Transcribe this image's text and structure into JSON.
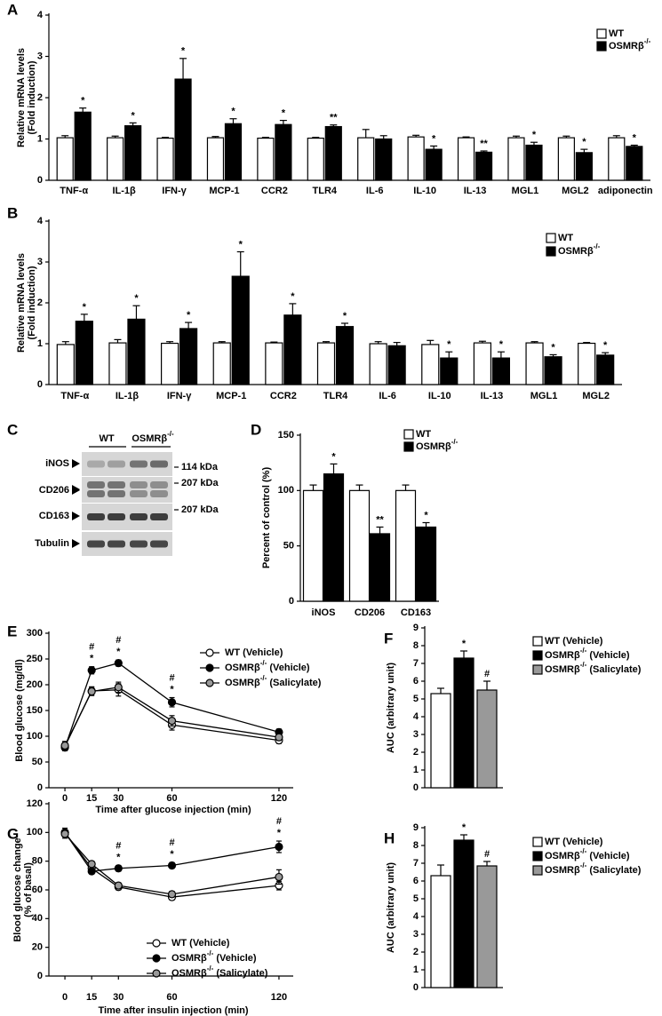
{
  "chart_data": [
    {
      "type": "bar",
      "panel": "A",
      "y_label": [
        "Relative mRNA levels",
        "(Fold induction)"
      ],
      "categories": [
        "TNF-α",
        "IL-1β",
        "IFN-γ",
        "MCP-1",
        "CCR2",
        "TLR4",
        "IL-6",
        "IL-10",
        "IL-13",
        "MGL1",
        "MGL2",
        "adiponectin"
      ],
      "ylim": [
        0,
        4
      ],
      "yticks": [
        0,
        1,
        2,
        3,
        4
      ],
      "series": [
        {
          "name": "WT",
          "color": "#ffffff",
          "values": [
            1.03,
            1.03,
            1.02,
            1.03,
            1.02,
            1.02,
            1.03,
            1.05,
            1.03,
            1.03,
            1.03,
            1.03
          ],
          "errors": [
            0.05,
            0.04,
            0.02,
            0.03,
            0.02,
            0.02,
            0.2,
            0.04,
            0.02,
            0.04,
            0.04,
            0.05
          ]
        },
        {
          "name": {
            "text": "OSMRβ",
            "sup": "-/-"
          },
          "color": "#000000",
          "values": [
            1.65,
            1.32,
            2.45,
            1.37,
            1.35,
            1.3,
            1.0,
            0.75,
            0.68,
            0.85,
            0.67,
            0.82
          ],
          "errors": [
            0.1,
            0.07,
            0.5,
            0.12,
            0.1,
            0.04,
            0.08,
            0.08,
            0.03,
            0.07,
            0.08,
            0.03
          ],
          "annotations": [
            "*",
            "*",
            "*",
            "*",
            "*",
            "**",
            null,
            "*",
            "**",
            "*",
            "*",
            "*"
          ]
        }
      ]
    },
    {
      "type": "bar",
      "panel": "B",
      "y_label": [
        "Relative mRNA levels",
        "(Fold induction)"
      ],
      "categories": [
        "TNF-α",
        "IL-1β",
        "IFN-γ",
        "MCP-1",
        "CCR2",
        "TLR4",
        "IL-6",
        "IL-10",
        "IL-13",
        "MGL1",
        "MGL2"
      ],
      "ylim": [
        0,
        4
      ],
      "yticks": [
        0,
        1,
        2,
        3,
        4
      ],
      "series": [
        {
          "name": "WT",
          "color": "#ffffff",
          "values": [
            0.98,
            1.02,
            1.01,
            1.02,
            1.02,
            1.02,
            1.0,
            0.98,
            1.02,
            1.02,
            1.01
          ],
          "errors": [
            0.07,
            0.08,
            0.04,
            0.03,
            0.02,
            0.03,
            0.05,
            0.1,
            0.04,
            0.03,
            0.02
          ]
        },
        {
          "name": {
            "text": "OSMRβ",
            "sup": "-/-"
          },
          "color": "#000000",
          "values": [
            1.55,
            1.6,
            1.37,
            2.65,
            1.7,
            1.42,
            0.95,
            0.65,
            0.65,
            0.68,
            0.72
          ],
          "errors": [
            0.17,
            0.33,
            0.15,
            0.6,
            0.28,
            0.08,
            0.08,
            0.15,
            0.15,
            0.05,
            0.06
          ],
          "annotations": [
            "*",
            "*",
            "*",
            "*",
            "*",
            "*",
            null,
            "*",
            "*",
            "*",
            "*"
          ]
        }
      ]
    },
    {
      "type": "bar",
      "panel": "D",
      "y_label": [
        "Percent of control (%)"
      ],
      "categories": [
        "iNOS",
        "CD206",
        "CD163"
      ],
      "ylim": [
        0,
        150
      ],
      "yticks": [
        0,
        50,
        100,
        150
      ],
      "series": [
        {
          "name": "WT",
          "color": "#ffffff",
          "values": [
            100,
            100,
            100
          ],
          "errors": [
            5,
            5,
            5
          ]
        },
        {
          "name": {
            "text": "OSMRβ",
            "sup": "-/-"
          },
          "color": "#000000",
          "values": [
            115,
            61,
            67
          ],
          "errors": [
            9,
            6,
            4
          ],
          "annotations": [
            "*",
            "**",
            "*"
          ]
        }
      ]
    },
    {
      "type": "line",
      "panel": "E",
      "y_label": [
        "Blood glucose (mg/dl)"
      ],
      "x_label": "Time after glucose injection (min)",
      "x": [
        0,
        15,
        30,
        60,
        120
      ],
      "xlim": [
        -9,
        128
      ],
      "xticks": [
        0,
        15,
        30,
        60,
        120
      ],
      "ylim": [
        0,
        300
      ],
      "yticks": [
        0,
        50,
        100,
        150,
        200,
        250,
        300
      ],
      "sig_marks": [
        null,
        [
          "#",
          "*"
        ],
        [
          "#",
          "*"
        ],
        [
          "#",
          "*"
        ],
        null
      ],
      "series": [
        {
          "name": "WT (Vehicle)",
          "color": "#ffffff",
          "values": [
            80,
            188,
            190,
            122,
            92
          ],
          "errors": [
            8,
            8,
            12,
            10,
            6
          ]
        },
        {
          "name": {
            "text": "OSMRβ",
            "sup": "-/-",
            "suffix": " (Vehicle)"
          },
          "color": "#000000",
          "values": [
            78,
            228,
            242,
            166,
            108
          ],
          "errors": [
            6,
            7,
            6,
            9,
            6
          ]
        },
        {
          "name": {
            "text": "OSMRβ",
            "sup": "-/-",
            "suffix": " (Salicylate)"
          },
          "color": "#999999",
          "values": [
            82,
            187,
            195,
            130,
            98
          ],
          "errors": [
            8,
            8,
            10,
            10,
            6
          ]
        }
      ]
    },
    {
      "type": "bar",
      "panel": "F",
      "y_label": [
        "AUC (arbitrary unit)"
      ],
      "categories": [
        null
      ],
      "ylim": [
        0,
        9
      ],
      "yticks": [
        0,
        1,
        2,
        3,
        4,
        5,
        6,
        7,
        8,
        9
      ],
      "series": [
        {
          "name": "WT (Vehicle)",
          "color": "#ffffff",
          "values": [
            5.3
          ],
          "errors": [
            0.3
          ]
        },
        {
          "name": {
            "text": "OSMRβ",
            "sup": "-/-",
            "suffix": " (Vehicle)"
          },
          "color": "#000000",
          "values": [
            7.3
          ],
          "errors": [
            0.4
          ],
          "annotations": [
            "*"
          ]
        },
        {
          "name": {
            "text": "OSMRβ",
            "sup": "-/-",
            "suffix": " (Salicylate)"
          },
          "color": "#999999",
          "values": [
            5.5
          ],
          "errors": [
            0.5
          ],
          "annotations": [
            "#"
          ]
        }
      ]
    },
    {
      "type": "line",
      "panel": "G",
      "y_label": [
        "Blood glucose change",
        "(% of basal)"
      ],
      "x_label": "Time after insulin injection (min)",
      "x": [
        0,
        15,
        30,
        60,
        120
      ],
      "xlim": [
        -9,
        128
      ],
      "xticks": [
        0,
        15,
        30,
        60,
        120
      ],
      "ylim": [
        0,
        120
      ],
      "yticks": [
        0,
        20,
        40,
        60,
        80,
        100,
        120
      ],
      "sig_marks": [
        null,
        null,
        [
          "#",
          "*"
        ],
        [
          "#",
          "*"
        ],
        [
          "#",
          "*"
        ]
      ],
      "series": [
        {
          "name": "WT (Vehicle)",
          "color": "#ffffff",
          "values": [
            100,
            75,
            62,
            55,
            63
          ],
          "errors": [
            3,
            2,
            2,
            2,
            3
          ]
        },
        {
          "name": {
            "text": "OSMRβ",
            "sup": "-/-",
            "suffix": " (Vehicle)"
          },
          "color": "#000000",
          "values": [
            100,
            73,
            75,
            77,
            90
          ],
          "errors": [
            2,
            2,
            2,
            2,
            4
          ]
        },
        {
          "name": {
            "text": "OSMRβ",
            "sup": "-/-",
            "suffix": " (Salicylate)"
          },
          "color": "#999999",
          "values": [
            99,
            78,
            63,
            57,
            69
          ],
          "errors": [
            3,
            2,
            2,
            2,
            5
          ]
        }
      ]
    },
    {
      "type": "bar",
      "panel": "H",
      "y_label": [
        "AUC (arbitrary unit)"
      ],
      "categories": [
        null
      ],
      "ylim": [
        0,
        9
      ],
      "yticks": [
        0,
        1,
        2,
        3,
        4,
        5,
        6,
        7,
        8,
        9
      ],
      "series": [
        {
          "name": "WT (Vehicle)",
          "color": "#ffffff",
          "values": [
            6.3
          ],
          "errors": [
            0.6
          ]
        },
        {
          "name": {
            "text": "OSMRβ",
            "sup": "-/-",
            "suffix": " (Vehicle)"
          },
          "color": "#000000",
          "values": [
            8.3
          ],
          "errors": [
            0.3
          ],
          "annotations": [
            "*"
          ]
        },
        {
          "name": {
            "text": "OSMRβ",
            "sup": "-/-",
            "suffix": " (Salicylate)"
          },
          "color": "#999999",
          "values": [
            6.85
          ],
          "errors": [
            0.25
          ],
          "annotations": [
            "#"
          ]
        }
      ]
    }
  ],
  "blot": {
    "panel": "C",
    "groups": [
      "WT",
      {
        "text": "OSMRβ",
        "sup": "-/-"
      }
    ],
    "rows": [
      "iNOS",
      "CD206",
      "CD163",
      "Tubulin"
    ],
    "size_markers": [
      "114 kDa",
      "207 kDa",
      "207 kDa"
    ]
  }
}
